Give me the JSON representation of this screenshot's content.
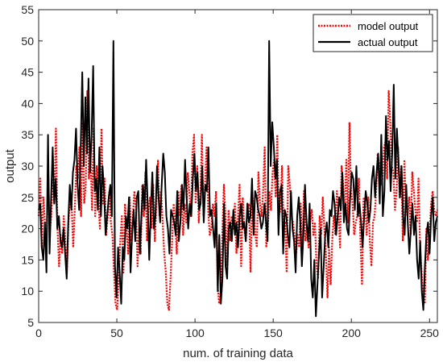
{
  "chart_data": {
    "type": "line",
    "title": "",
    "xlabel": "num. of training data",
    "ylabel": "output",
    "xlim": [
      0,
      255
    ],
    "ylim": [
      5,
      55
    ],
    "xticks": [
      0,
      50,
      100,
      150,
      200,
      250
    ],
    "yticks": [
      5,
      10,
      15,
      20,
      25,
      30,
      35,
      40,
      45,
      50,
      55
    ],
    "grid": false,
    "legend_position": "top-right",
    "series": [
      {
        "name": "model output",
        "color": "#ff0000",
        "style": "dotted",
        "values": [
          22,
          28,
          17,
          25,
          21,
          16,
          30,
          19,
          22,
          28,
          24,
          36,
          20,
          14,
          19,
          16,
          22,
          18,
          13,
          21,
          25,
          24,
          17,
          23,
          30,
          28,
          33,
          22,
          37,
          24,
          27,
          42,
          28,
          32,
          23,
          36,
          22,
          30,
          25,
          20,
          36,
          24,
          28,
          19,
          22,
          26,
          21,
          19,
          13,
          8,
          7,
          12,
          18,
          22,
          13,
          24,
          20,
          16,
          25,
          18,
          22,
          26,
          23,
          14,
          20,
          16,
          27,
          22,
          29,
          18,
          23,
          25,
          20,
          27,
          18,
          24,
          31,
          22,
          26,
          21,
          16,
          13,
          8,
          7,
          12,
          18,
          24,
          21,
          16,
          26,
          22,
          27,
          19,
          24,
          21,
          29,
          26,
          22,
          32,
          35,
          24,
          30,
          21,
          25,
          35,
          22,
          27,
          33,
          23,
          19,
          20,
          24,
          22,
          26,
          11,
          8,
          10,
          19,
          27,
          22,
          14,
          23,
          18,
          22,
          20,
          24,
          16,
          22,
          27,
          14,
          25,
          20,
          18,
          23,
          24,
          13,
          26,
          23,
          19,
          17,
          29,
          24,
          22,
          26,
          33,
          17,
          20,
          26,
          23,
          29,
          31,
          25,
          35,
          22,
          23,
          30,
          21,
          21,
          13,
          30,
          27,
          22,
          21,
          19,
          16,
          19,
          17,
          24,
          16,
          26,
          18,
          20,
          17,
          21,
          23,
          19,
          21,
          14,
          12,
          22,
          19,
          25,
          20,
          16,
          9,
          17,
          11,
          18,
          22,
          19,
          26,
          23,
          17,
          30,
          27,
          23,
          31,
          21,
          37,
          26,
          24,
          19,
          21,
          22,
          28,
          18,
          11,
          25,
          24,
          19,
          25,
          18,
          14,
          21,
          22,
          26,
          32,
          30,
          27,
          28,
          33,
          34,
          28,
          42,
          37,
          30,
          29,
          23,
          26,
          33,
          25,
          30,
          18,
          31,
          23,
          22,
          25,
          19,
          29,
          26,
          23,
          21,
          28,
          17,
          13,
          9,
          8,
          20,
          15,
          19,
          24,
          26,
          23,
          22,
          23
        ]
      },
      {
        "name": "actual output",
        "color": "#000000",
        "style": "solid",
        "values": [
          23,
          24,
          17,
          15,
          21,
          13,
          35,
          16,
          25,
          33,
          24,
          28,
          20,
          22,
          18,
          17,
          20,
          16,
          12,
          21,
          27,
          23,
          29,
          31,
          36,
          27,
          23,
          33,
          45,
          30,
          41,
          32,
          44,
          29,
          35,
          46,
          26,
          28,
          23,
          33,
          22,
          30,
          26,
          19,
          22,
          25,
          27,
          22,
          50,
          14,
          9,
          17,
          13,
          8,
          17,
          15,
          22,
          20,
          25,
          13,
          19,
          23,
          18,
          25,
          26,
          16,
          22,
          27,
          23,
          31,
          24,
          15,
          23,
          29,
          20,
          22,
          30,
          25,
          21,
          27,
          32,
          29,
          22,
          20,
          16,
          23,
          22,
          21,
          19,
          26,
          18,
          21,
          27,
          23,
          31,
          25,
          20,
          24,
          22,
          28,
          32,
          26,
          29,
          23,
          24,
          30,
          21,
          27,
          26,
          33,
          22,
          23,
          20,
          17,
          24,
          10,
          19,
          8,
          12,
          24,
          14,
          12,
          20,
          21,
          18,
          23,
          19,
          21,
          17,
          22,
          24,
          20,
          21,
          18,
          24,
          21,
          22,
          28,
          19,
          26,
          25,
          23,
          22,
          20,
          21,
          24,
          21,
          18,
          50,
          30,
          37,
          33,
          28,
          31,
          19,
          26,
          27,
          16,
          23,
          22,
          19,
          17,
          26,
          20,
          18,
          13,
          22,
          25,
          21,
          14,
          19,
          27,
          21,
          18,
          24,
          12,
          9,
          15,
          6,
          11,
          16,
          20,
          9,
          14,
          19,
          21,
          17,
          23,
          22,
          26,
          24,
          19,
          22,
          25,
          23,
          29,
          21,
          24,
          20,
          19,
          25,
          29,
          28,
          23,
          30,
          22,
          24,
          21,
          17,
          22,
          26,
          24,
          21,
          23,
          28,
          30,
          25,
          29,
          32,
          24,
          35,
          22,
          26,
          38,
          31,
          34,
          26,
          32,
          43,
          28,
          36,
          31,
          25,
          30,
          22,
          19,
          27,
          21,
          16,
          20,
          24,
          19,
          22,
          15,
          12,
          18,
          10,
          7,
          14,
          19,
          21,
          16,
          22,
          25,
          18,
          21,
          22
        ]
      }
    ]
  }
}
